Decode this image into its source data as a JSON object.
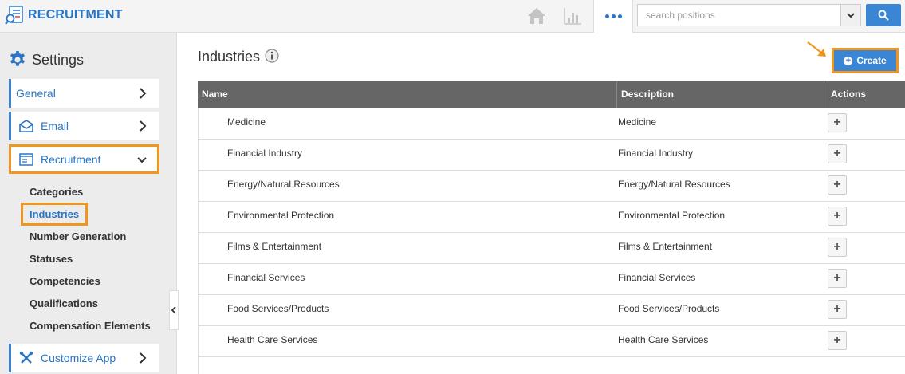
{
  "app": {
    "title": "RECRUITMENT"
  },
  "search": {
    "placeholder": "search positions"
  },
  "sidebar": {
    "heading": "Settings",
    "nav": {
      "general": "General",
      "email": "Email",
      "recruitment": "Recruitment",
      "customize": "Customize App"
    },
    "sub_items": [
      "Categories",
      "Industries",
      "Number Generation",
      "Statuses",
      "Competencies",
      "Qualifications",
      "Compensation Elements"
    ]
  },
  "main": {
    "title": "Industries",
    "create_label": "Create",
    "columns": {
      "name": "Name",
      "description": "Description",
      "actions": "Actions"
    },
    "rows": [
      {
        "name": "Medicine",
        "description": "Medicine"
      },
      {
        "name": "Financial Industry",
        "description": "Financial Industry"
      },
      {
        "name": "Energy/Natural Resources",
        "description": "Energy/Natural Resources"
      },
      {
        "name": "Environmental Protection",
        "description": "Environmental Protection"
      },
      {
        "name": "Films & Entertainment",
        "description": "Films & Entertainment"
      },
      {
        "name": "Financial Services",
        "description": "Financial Services"
      },
      {
        "name": "Food Services/Products",
        "description": "Food Services/Products"
      },
      {
        "name": "Health Care Services",
        "description": "Health Care Services"
      }
    ],
    "row_action_symbol": "+"
  },
  "colors": {
    "accent": "#2a76c6",
    "highlight": "#f0961e",
    "header_bg": "#666666"
  }
}
